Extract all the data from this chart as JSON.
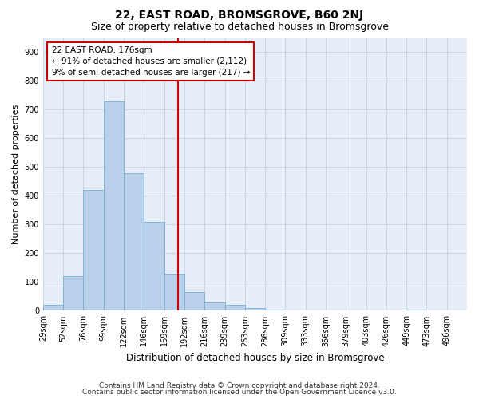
{
  "title": "22, EAST ROAD, BROMSGROVE, B60 2NJ",
  "subtitle": "Size of property relative to detached houses in Bromsgrove",
  "xlabel": "Distribution of detached houses by size in Bromsgrove",
  "ylabel": "Number of detached properties",
  "bar_values": [
    20,
    120,
    420,
    730,
    480,
    310,
    130,
    65,
    28,
    20,
    10,
    5,
    0,
    0,
    0,
    0,
    0,
    0,
    5,
    0,
    0
  ],
  "bin_labels": [
    "29sqm",
    "52sqm",
    "76sqm",
    "99sqm",
    "122sqm",
    "146sqm",
    "169sqm",
    "192sqm",
    "216sqm",
    "239sqm",
    "263sqm",
    "286sqm",
    "309sqm",
    "333sqm",
    "356sqm",
    "379sqm",
    "403sqm",
    "426sqm",
    "449sqm",
    "473sqm",
    "496sqm"
  ],
  "bar_color": "#b8d0ea",
  "bar_edge_color": "#7aadd4",
  "highlight_bar_index": 6,
  "highlight_bar_color": "#b8d0ea",
  "vline_color": "#cc0000",
  "vline_x": 6.7,
  "annotation_text": "22 EAST ROAD: 176sqm\n← 91% of detached houses are smaller (2,112)\n9% of semi-detached houses are larger (217) →",
  "annotation_box_facecolor": "#ffffff",
  "annotation_box_edgecolor": "#cc0000",
  "ylim": [
    0,
    950
  ],
  "yticks": [
    0,
    100,
    200,
    300,
    400,
    500,
    600,
    700,
    800,
    900
  ],
  "grid_color": "#c8d4e8",
  "bg_color": "#e8eef8",
  "footer_line1": "Contains HM Land Registry data © Crown copyright and database right 2024.",
  "footer_line2": "Contains public sector information licensed under the Open Government Licence v3.0.",
  "title_fontsize": 10,
  "subtitle_fontsize": 9,
  "xlabel_fontsize": 8.5,
  "ylabel_fontsize": 8,
  "tick_fontsize": 7,
  "annotation_fontsize": 7.5,
  "footer_fontsize": 6.5
}
